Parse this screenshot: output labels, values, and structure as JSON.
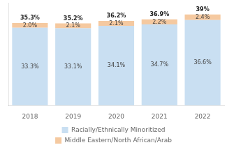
{
  "chart_data": {
    "type": "bar",
    "stacked": true,
    "categories": [
      "2018",
      "2019",
      "2020",
      "2021",
      "2022"
    ],
    "series": [
      {
        "name": "Racially/Ethnically Minoritized",
        "color": "#c9dff2",
        "values": [
          33.3,
          33.1,
          34.1,
          34.7,
          36.6
        ],
        "value_labels": [
          "33.3%",
          "33.1%",
          "34.1%",
          "34.7%",
          "36.6%"
        ]
      },
      {
        "name": "Middle Eastern/North African/Arab",
        "color": "#f5c9a0",
        "values": [
          2.0,
          2.1,
          2.1,
          2.2,
          2.4
        ],
        "value_labels": [
          "2.0%",
          "2.1%",
          "2.1%",
          "2.2%",
          "2.4%"
        ]
      }
    ],
    "totals": [
      35.3,
      35.2,
      36.2,
      36.9,
      39.0
    ],
    "total_labels": [
      "35.3%",
      "35.2%",
      "36.2%",
      "36.9%",
      "39%"
    ],
    "ylim": [
      0,
      44
    ],
    "tick_labels": "x",
    "grid": false,
    "legend": "bottom",
    "data_labels": true
  }
}
